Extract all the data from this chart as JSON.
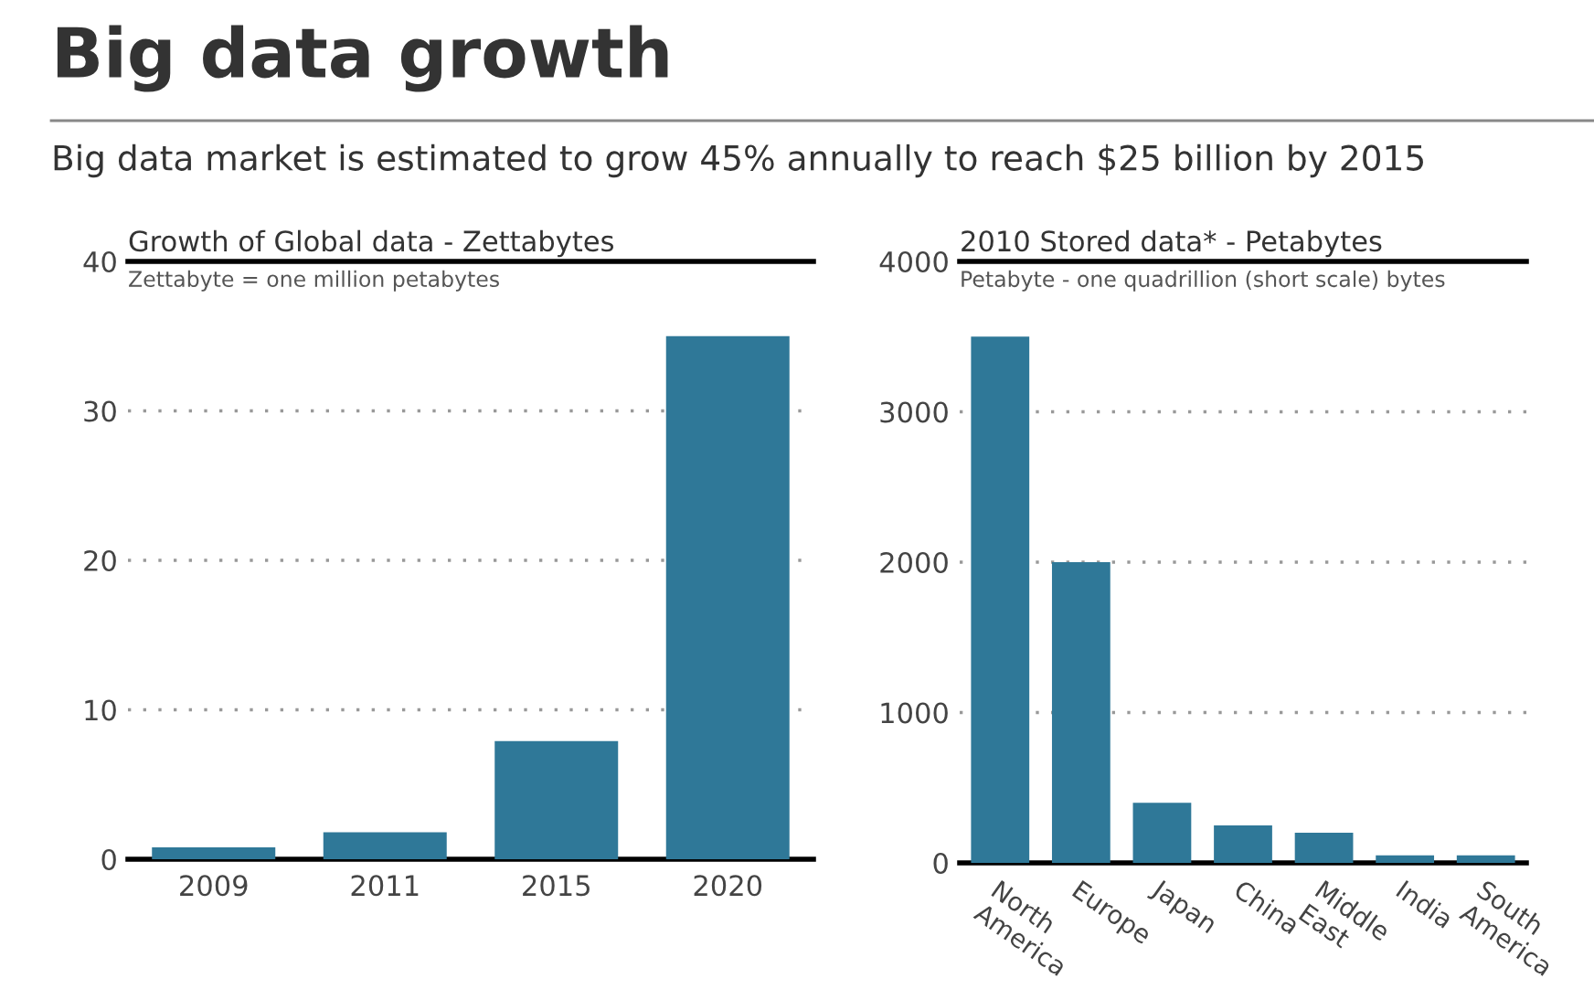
{
  "chart_data": [
    {
      "type": "bar",
      "title": "Growth of Global data - Zettabytes",
      "subtitle": "Zettabyte = one million petabytes",
      "annotations": [
        "Big data growth",
        "Big data market is estimated to grow 45% annually to reach $25 billion by 2015"
      ],
      "categories": [
        "2009",
        "2011",
        "2015",
        "2020"
      ],
      "values": [
        0.8,
        1.8,
        7.9,
        35
      ],
      "color": "#2f7898",
      "ylim": [
        0,
        40
      ],
      "yticks": [
        0,
        10,
        20,
        30,
        40
      ],
      "grid": "y"
    },
    {
      "type": "bar",
      "title": "2010 Stored data* - Petabytes",
      "subtitle": "Petabyte - one quadrillion (short scale) bytes",
      "categories": [
        "North\nAmerica",
        "Europe",
        "Japan",
        "China",
        "Middle\nEast",
        "India",
        "South\nAmerica"
      ],
      "values": [
        3500,
        2000,
        400,
        250,
        200,
        50,
        50
      ],
      "color": "#2f7898",
      "ylim": [
        0,
        4000
      ],
      "yticks": [
        0,
        1000,
        2000,
        3000,
        4000
      ],
      "grid": "y"
    }
  ]
}
